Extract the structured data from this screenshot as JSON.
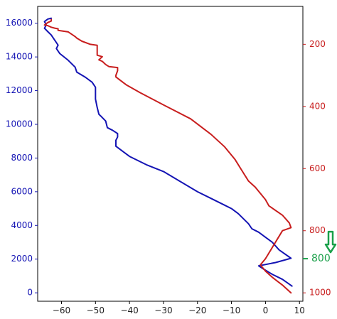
{
  "chart_data": {
    "type": "line",
    "title": "",
    "xlabel": "",
    "ylabel": "",
    "xlim": [
      -67,
      11
    ],
    "ylim_left": [
      -500,
      17000
    ],
    "ylim_right": [
      1027,
      78
    ],
    "xticks": [
      -60,
      -50,
      -40,
      -30,
      -20,
      -10,
      0,
      10
    ],
    "yticks_left": [
      0,
      2000,
      4000,
      6000,
      8000,
      10000,
      12000,
      14000,
      16000
    ],
    "yticks_right": [
      200,
      400,
      600,
      800,
      1000
    ],
    "grid": false,
    "legend": "none",
    "colors": {
      "blue_series": "#1414b4",
      "red_series": "#c81e1e",
      "annotation": "#1aa04a",
      "left_axis": "#1414b4",
      "right_axis": "#c81e1e"
    },
    "series": [
      {
        "axis": "left",
        "color": "#1414b4",
        "x": [
          7.8,
          5,
          2,
          -0.5,
          -2,
          3,
          7.5,
          4,
          2,
          0,
          -2,
          -4,
          -5,
          -6.5,
          -8,
          -10,
          -12,
          -16,
          -20,
          -25,
          -30,
          -35,
          -40,
          -44,
          -44,
          -43.5,
          -43.5,
          -45,
          -46.5,
          -47,
          -48.5,
          -49,
          -49.5,
          -50,
          -50,
          -50,
          -51,
          -53,
          -55.5,
          -56,
          -58,
          -60.5,
          -61.5,
          -61,
          -62,
          -63,
          -64,
          -65,
          -64.5,
          -65,
          -64,
          -63
        ],
        "y": [
          400,
          800,
          1100,
          1400,
          1600,
          1800,
          2050,
          2550,
          3000,
          3300,
          3600,
          3800,
          4100,
          4400,
          4700,
          5000,
          5200,
          5600,
          6000,
          6600,
          7200,
          7600,
          8100,
          8700,
          9050,
          9250,
          9450,
          9650,
          9800,
          10200,
          10500,
          10600,
          11000,
          11500,
          12000,
          12200,
          12500,
          12800,
          13100,
          13400,
          13800,
          14200,
          14500,
          14700,
          15000,
          15300,
          15500,
          15700,
          15900,
          16100,
          16250,
          16300
        ]
      },
      {
        "axis": "right",
        "color": "#c81e1e",
        "x": [
          7.5,
          5,
          2,
          0,
          -1.5,
          0,
          5,
          7.5,
          7,
          5,
          1,
          0,
          -3,
          -5,
          -7,
          -9,
          -12,
          -16,
          -22,
          -30,
          -37,
          -41,
          -44,
          -44,
          -43.5,
          -43.5,
          -46,
          -47,
          -48,
          -49,
          -48,
          -49.5,
          -49.5,
          -49.5,
          -51.5,
          -54,
          -55.5,
          -56,
          -58,
          -61,
          -61,
          -62,
          -63,
          -64,
          -65,
          -64,
          -63,
          -63
        ],
        "y": [
          1000,
          975,
          950,
          930,
          910,
          890,
          800,
          790,
          775,
          750,
          720,
          700,
          660,
          640,
          605,
          570,
          530,
          490,
          440,
          395,
          355,
          330,
          305,
          300,
          285,
          275,
          272,
          265,
          255,
          250,
          240,
          235,
          220,
          203,
          200,
          190,
          180,
          175,
          160,
          155,
          150,
          148,
          145,
          140,
          138,
          130,
          125,
          120
        ]
      }
    ],
    "annotations": [
      {
        "text": "800",
        "axis": "right",
        "y": 890,
        "arrow": "down",
        "color": "#1aa04a"
      }
    ]
  }
}
